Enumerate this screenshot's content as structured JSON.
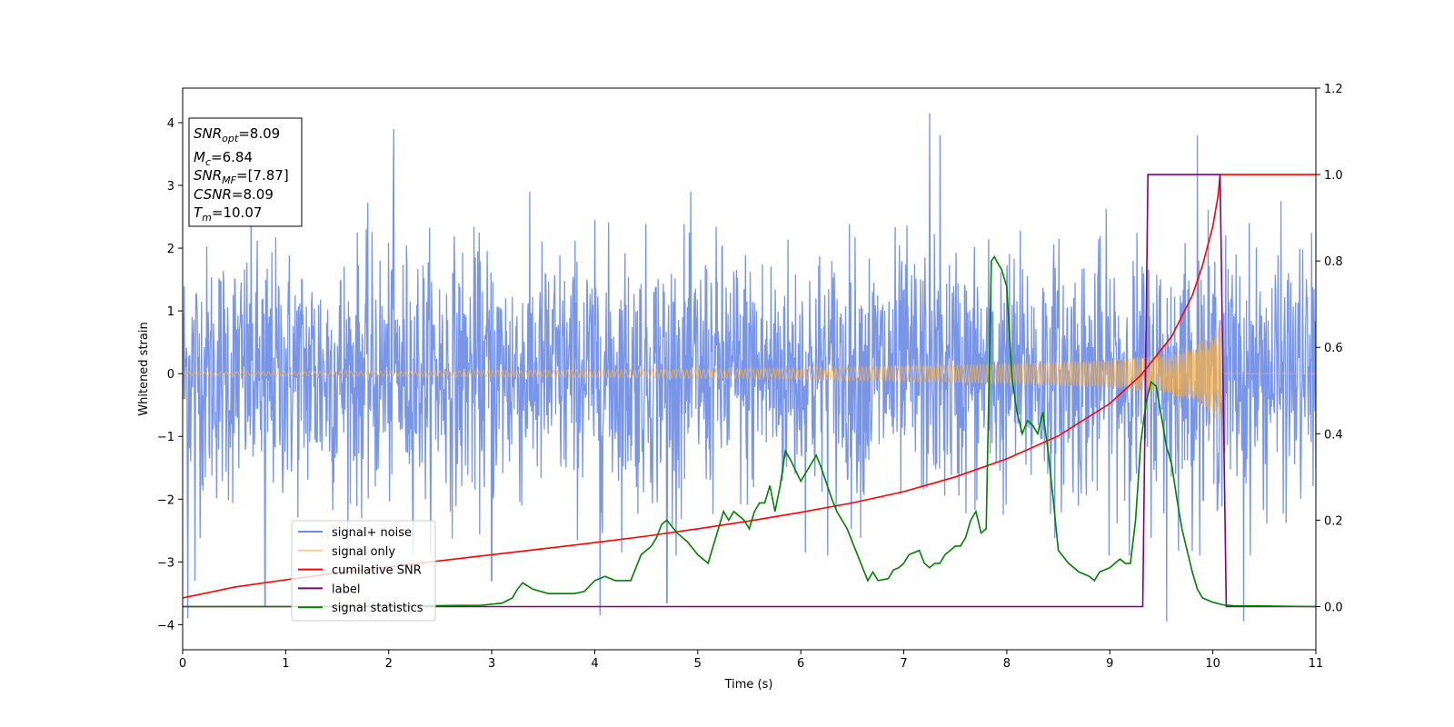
{
  "chart_data": {
    "type": "line",
    "title": "",
    "xlabel": "Time (s)",
    "ylabel": "Whitened strain",
    "xlim": [
      0,
      11
    ],
    "ylim": [
      -4.4,
      4.55
    ],
    "y2lim": [
      -0.1,
      1.2
    ],
    "x_ticks": [
      0,
      1,
      2,
      3,
      4,
      5,
      6,
      7,
      8,
      9,
      10,
      11
    ],
    "y_ticks": [
      -4,
      -3,
      -2,
      -1,
      0,
      1,
      2,
      3,
      4
    ],
    "y2_ticks": [
      "0.0",
      "0.2",
      "0.4",
      "0.6",
      "0.8",
      "1.0",
      "1.2"
    ],
    "grid": false,
    "legend_position": "lower-left",
    "annotation": {
      "lines": [
        {
          "base": "SNR",
          "sub": "opt",
          "value": "=8.09"
        },
        {
          "base": "M",
          "sub": "c",
          "value": "=6.84"
        },
        {
          "base": "SNR",
          "sub": "MF",
          "value": "=[7.87]"
        },
        {
          "base": "CSNR",
          "sub": "",
          "value": "=8.09"
        },
        {
          "base": "T",
          "sub": "m",
          "value": "=10.07"
        }
      ]
    },
    "series": [
      {
        "name": "signal+ noise",
        "axis": "left",
        "color": "#6c8ce6",
        "style": "noise",
        "duration": 11,
        "approx_range": [
          -3.9,
          4.2
        ],
        "sample_peaks": [
          [
            0.05,
            -3.9
          ],
          [
            0.12,
            -3.3
          ],
          [
            0.8,
            -3.7
          ],
          [
            2.05,
            3.9
          ],
          [
            3.0,
            -3.3
          ],
          [
            4.05,
            -3.85
          ],
          [
            4.7,
            -3.65
          ],
          [
            7.25,
            4.15
          ],
          [
            7.35,
            3.8
          ],
          [
            9.55,
            -3.95
          ],
          [
            9.85,
            3.8
          ],
          [
            10.3,
            -3.95
          ]
        ]
      },
      {
        "name": "signal only",
        "axis": "left",
        "color": "#f5b04a",
        "style": "chirp",
        "envelope": [
          [
            0,
            0.03
          ],
          [
            2,
            0.04
          ],
          [
            4,
            0.06
          ],
          [
            6,
            0.09
          ],
          [
            8,
            0.16
          ],
          [
            9,
            0.22
          ],
          [
            9.5,
            0.3
          ],
          [
            9.8,
            0.45
          ],
          [
            10.0,
            0.65
          ],
          [
            10.07,
            0.85
          ],
          [
            10.1,
            0.0
          ],
          [
            11,
            0.0
          ]
        ]
      },
      {
        "name": "cumilative SNR",
        "axis": "right",
        "color": "#ff0000",
        "x": [
          0,
          0.5,
          1,
          1.5,
          2,
          2.5,
          3,
          3.5,
          4,
          4.5,
          5,
          5.5,
          6,
          6.5,
          7,
          7.5,
          8,
          8.5,
          9,
          9.3,
          9.6,
          9.8,
          9.9,
          10.0,
          10.05,
          10.07,
          11
        ],
        "values": [
          0.02,
          0.045,
          0.062,
          0.078,
          0.092,
          0.106,
          0.12,
          0.134,
          0.148,
          0.163,
          0.18,
          0.198,
          0.218,
          0.24,
          0.266,
          0.3,
          0.342,
          0.395,
          0.47,
          0.535,
          0.625,
          0.72,
          0.79,
          0.88,
          0.95,
          1.0,
          1.0
        ]
      },
      {
        "name": "label",
        "axis": "right",
        "color": "#800080",
        "x": [
          0,
          9.32,
          9.37,
          10.07,
          10.13,
          11
        ],
        "values": [
          0,
          0,
          1,
          1,
          0,
          0
        ]
      },
      {
        "name": "signal statistics",
        "axis": "right",
        "color": "#008000",
        "x": [
          0,
          1.0,
          2.0,
          2.9,
          3.1,
          3.2,
          3.25,
          3.3,
          3.4,
          3.55,
          3.8,
          3.9,
          4.0,
          4.1,
          4.2,
          4.35,
          4.45,
          4.5,
          4.55,
          4.6,
          4.65,
          4.7,
          4.8,
          4.9,
          5.0,
          5.1,
          5.15,
          5.2,
          5.25,
          5.3,
          5.35,
          5.45,
          5.5,
          5.55,
          5.6,
          5.65,
          5.7,
          5.75,
          5.8,
          5.85,
          5.9,
          6.0,
          6.05,
          6.15,
          6.2,
          6.3,
          6.35,
          6.45,
          6.55,
          6.65,
          6.7,
          6.75,
          6.85,
          6.9,
          6.95,
          7.0,
          7.05,
          7.15,
          7.2,
          7.25,
          7.3,
          7.35,
          7.4,
          7.45,
          7.5,
          7.55,
          7.6,
          7.65,
          7.7,
          7.75,
          7.8,
          7.85,
          7.88,
          7.9,
          7.95,
          8.0,
          8.05,
          8.1,
          8.15,
          8.2,
          8.25,
          8.3,
          8.35,
          8.4,
          8.45,
          8.5,
          8.6,
          8.7,
          8.8,
          8.85,
          8.9,
          9.0,
          9.05,
          9.1,
          9.15,
          9.2,
          9.25,
          9.3,
          9.35,
          9.4,
          9.45,
          9.5,
          9.55,
          9.6,
          9.65,
          9.7,
          9.75,
          9.8,
          9.85,
          9.9,
          10.0,
          10.1,
          10.2,
          11
        ],
        "values": [
          0,
          0.0,
          0.001,
          0.003,
          0.008,
          0.02,
          0.04,
          0.055,
          0.04,
          0.03,
          0.03,
          0.035,
          0.06,
          0.07,
          0.06,
          0.06,
          0.12,
          0.13,
          0.14,
          0.16,
          0.19,
          0.2,
          0.17,
          0.15,
          0.12,
          0.1,
          0.14,
          0.18,
          0.22,
          0.2,
          0.22,
          0.2,
          0.18,
          0.22,
          0.24,
          0.24,
          0.28,
          0.22,
          0.28,
          0.36,
          0.34,
          0.29,
          0.31,
          0.35,
          0.32,
          0.25,
          0.22,
          0.18,
          0.12,
          0.06,
          0.08,
          0.06,
          0.065,
          0.085,
          0.09,
          0.1,
          0.12,
          0.13,
          0.1,
          0.09,
          0.1,
          0.1,
          0.12,
          0.13,
          0.14,
          0.14,
          0.16,
          0.2,
          0.22,
          0.17,
          0.18,
          0.8,
          0.81,
          0.8,
          0.78,
          0.74,
          0.53,
          0.45,
          0.4,
          0.43,
          0.42,
          0.4,
          0.45,
          0.36,
          0.25,
          0.13,
          0.1,
          0.08,
          0.07,
          0.06,
          0.08,
          0.09,
          0.1,
          0.11,
          0.1,
          0.1,
          0.2,
          0.38,
          0.47,
          0.52,
          0.51,
          0.44,
          0.37,
          0.33,
          0.25,
          0.18,
          0.13,
          0.08,
          0.04,
          0.02,
          0.01,
          0.004,
          0.002,
          0
        ]
      }
    ]
  }
}
